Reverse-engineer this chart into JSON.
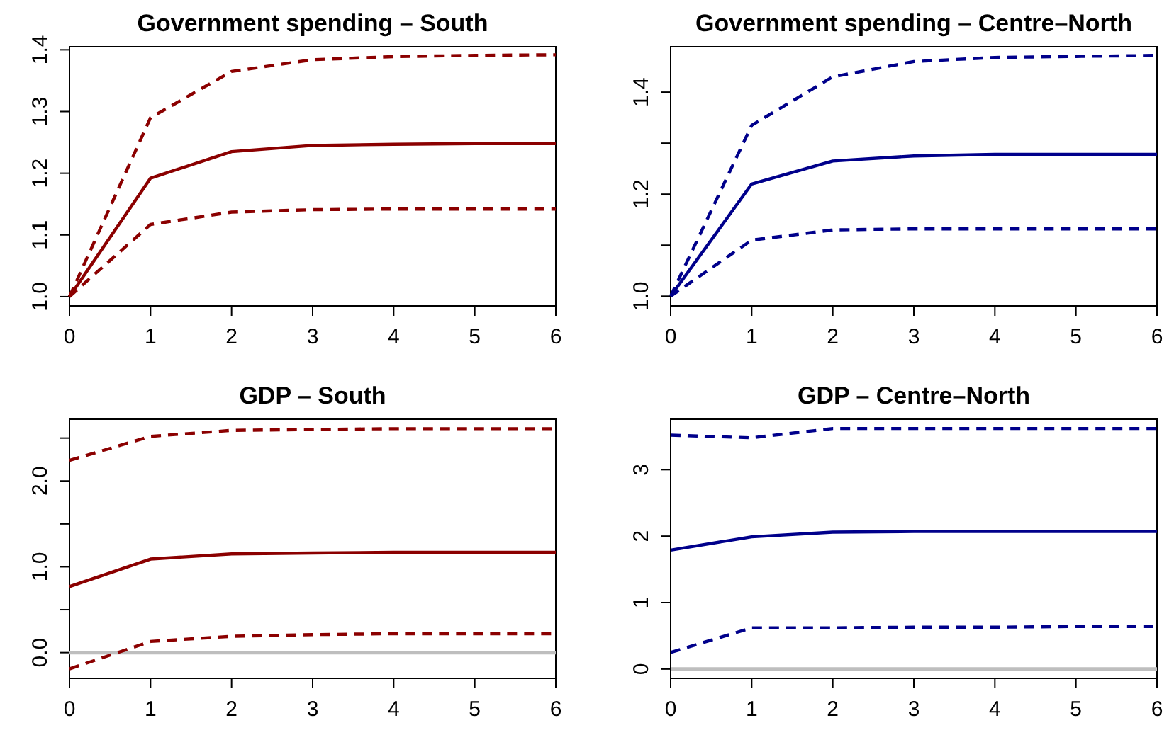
{
  "chart_data": [
    {
      "type": "line",
      "title": "Government spending – South",
      "x": [
        0,
        1,
        2,
        3,
        4,
        5,
        6
      ],
      "xlim": [
        0,
        6
      ],
      "xticks": [
        0,
        1,
        2,
        3,
        4,
        5,
        6
      ],
      "ylim": [
        0.985,
        1.405
      ],
      "yticks": [
        {
          "value": 1.0,
          "label": "1.0"
        },
        1.1,
        1.2,
        1.3,
        1.4
      ],
      "series": [
        {
          "color": "#8b0000",
          "line_style": "dashed",
          "values": [
            1.0,
            1.29,
            1.365,
            1.384,
            1.389,
            1.391,
            1.392
          ]
        },
        {
          "color": "#8b0000",
          "line_style": "solid",
          "values": [
            1.0,
            1.192,
            1.235,
            1.245,
            1.247,
            1.248,
            1.248
          ]
        },
        {
          "color": "#8b0000",
          "line_style": "dashed",
          "values": [
            1.0,
            1.117,
            1.137,
            1.141,
            1.142,
            1.142,
            1.142
          ]
        }
      ]
    },
    {
      "type": "line",
      "title": "Government spending – Centre–North",
      "x": [
        0,
        1,
        2,
        3,
        4,
        5,
        6
      ],
      "xlim": [
        0,
        6
      ],
      "xticks": [
        0,
        1,
        2,
        3,
        4,
        5,
        6
      ],
      "ylim": [
        0.981,
        1.489
      ],
      "yticks": [
        {
          "value": 1.0,
          "label": "1.0"
        },
        {
          "value": 1.1,
          "label": null
        },
        {
          "value": 1.2,
          "label": "1.2"
        },
        {
          "value": 1.3,
          "label": null
        },
        {
          "value": 1.4,
          "label": "1.4"
        }
      ],
      "series": [
        {
          "color": "#00008b",
          "line_style": "dashed",
          "values": [
            1.0,
            1.335,
            1.43,
            1.46,
            1.468,
            1.47,
            1.472
          ]
        },
        {
          "color": "#00008b",
          "line_style": "solid",
          "values": [
            1.0,
            1.22,
            1.265,
            1.275,
            1.278,
            1.278,
            1.278
          ]
        },
        {
          "color": "#00008b",
          "line_style": "dashed",
          "values": [
            1.0,
            1.11,
            1.13,
            1.132,
            1.132,
            1.132,
            1.132
          ]
        }
      ]
    },
    {
      "type": "line",
      "title": "GDP – South",
      "x": [
        0,
        1,
        2,
        3,
        4,
        5,
        6
      ],
      "xlim": [
        0,
        6
      ],
      "xticks": [
        0,
        1,
        2,
        3,
        4,
        5,
        6
      ],
      "ylim": [
        -0.3,
        2.72
      ],
      "yticks": [
        {
          "value": 0,
          "label": "0.0"
        },
        {
          "value": 0.5,
          "label": null
        },
        {
          "value": 1,
          "label": "1.0"
        },
        {
          "value": 1.5,
          "label": null
        },
        {
          "value": 2,
          "label": "2.0"
        },
        {
          "value": 2.5,
          "label": null
        }
      ],
      "ref_lines": [
        {
          "axis": "y",
          "value": 0,
          "color": "#bebebe"
        }
      ],
      "series": [
        {
          "color": "#8b0000",
          "line_style": "dashed",
          "values": [
            2.24,
            2.52,
            2.59,
            2.6,
            2.61,
            2.61,
            2.61
          ]
        },
        {
          "color": "#8b0000",
          "line_style": "solid",
          "values": [
            0.77,
            1.09,
            1.15,
            1.16,
            1.17,
            1.17,
            1.17
          ]
        },
        {
          "color": "#8b0000",
          "line_style": "dashed",
          "values": [
            -0.19,
            0.13,
            0.19,
            0.21,
            0.22,
            0.22,
            0.22
          ]
        }
      ]
    },
    {
      "type": "line",
      "title": "GDP – Centre–North",
      "x": [
        0,
        1,
        2,
        3,
        4,
        5,
        6
      ],
      "xlim": [
        0,
        6
      ],
      "xticks": [
        0,
        1,
        2,
        3,
        4,
        5,
        6
      ],
      "ylim": [
        -0.14,
        3.76
      ],
      "yticks": [
        0,
        1,
        2,
        3
      ],
      "ref_lines": [
        {
          "axis": "y",
          "value": 0,
          "color": "#bebebe"
        }
      ],
      "series": [
        {
          "color": "#00008b",
          "line_style": "dashed",
          "values": [
            3.52,
            3.48,
            3.62,
            3.62,
            3.62,
            3.62,
            3.62
          ]
        },
        {
          "color": "#00008b",
          "line_style": "solid",
          "values": [
            1.79,
            1.99,
            2.06,
            2.07,
            2.07,
            2.07,
            2.07
          ]
        },
        {
          "color": "#00008b",
          "line_style": "dashed",
          "values": [
            0.25,
            0.62,
            0.62,
            0.63,
            0.63,
            0.64,
            0.64
          ]
        }
      ]
    }
  ]
}
